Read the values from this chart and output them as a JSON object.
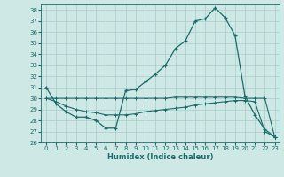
{
  "xlabel": "Humidex (Indice chaleur)",
  "ylabel": "",
  "bg_color": "#cde8e5",
  "line_color": "#1a6b6b",
  "grid_color": "#aacccc",
  "xlim": [
    -0.5,
    23.5
  ],
  "ylim": [
    26,
    38.5
  ],
  "yticks": [
    26,
    27,
    28,
    29,
    30,
    31,
    32,
    33,
    34,
    35,
    36,
    37,
    38
  ],
  "xticks": [
    0,
    1,
    2,
    3,
    4,
    5,
    6,
    7,
    8,
    9,
    10,
    11,
    12,
    13,
    14,
    15,
    16,
    17,
    18,
    19,
    20,
    21,
    22,
    23
  ],
  "series": {
    "main": [
      31.0,
      29.5,
      28.8,
      28.3,
      28.3,
      28.0,
      27.3,
      27.3,
      30.7,
      30.8,
      31.5,
      32.2,
      33.0,
      34.5,
      35.2,
      37.0,
      37.2,
      38.2,
      37.3,
      35.7,
      30.2,
      28.5,
      27.2,
      26.5
    ],
    "upper": [
      30.0,
      30.0,
      30.0,
      30.0,
      30.0,
      30.0,
      30.0,
      30.0,
      30.0,
      30.0,
      30.0,
      30.0,
      30.0,
      30.1,
      30.1,
      30.1,
      30.1,
      30.1,
      30.1,
      30.1,
      30.0,
      30.0,
      30.0,
      26.5
    ],
    "lower": [
      30.0,
      29.7,
      29.3,
      29.0,
      28.8,
      28.7,
      28.5,
      28.5,
      28.5,
      28.6,
      28.8,
      28.9,
      29.0,
      29.1,
      29.2,
      29.4,
      29.5,
      29.6,
      29.7,
      29.8,
      29.8,
      29.7,
      27.0,
      26.5
    ]
  },
  "figsize": [
    3.2,
    2.0
  ],
  "dpi": 100
}
